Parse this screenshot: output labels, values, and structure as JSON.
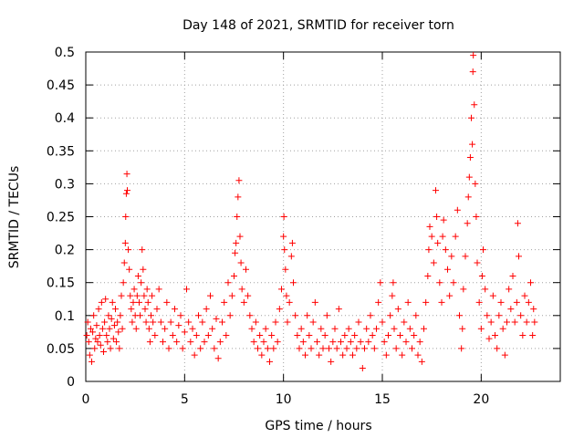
{
  "chart_data": {
    "type": "scatter",
    "title": "Day 148 of 2021, SRMTID for receiver torn",
    "xlabel": "GPS time / hours",
    "ylabel": "SRMTID / TECUs",
    "xlim": [
      0,
      24
    ],
    "ylim": [
      0,
      0.5
    ],
    "xticks": [
      0,
      5,
      10,
      15,
      20
    ],
    "xtick_labels": [
      "0",
      "5",
      "10",
      "15",
      "20"
    ],
    "yticks": [
      0,
      0.05,
      0.1,
      0.15,
      0.2,
      0.25,
      0.3,
      0.35,
      0.4,
      0.45,
      0.5
    ],
    "ytick_labels": [
      "0",
      "0.05",
      "0.1",
      "0.15",
      "0.2",
      "0.25",
      "0.3",
      "0.35",
      "0.4",
      "0.45",
      "0.5"
    ],
    "grid": true,
    "marker": "+",
    "color": "#ff0000",
    "series": [
      {
        "name": "SRMTID",
        "points": [
          [
            0.05,
            0.07
          ],
          [
            0.1,
            0.09
          ],
          [
            0.15,
            0.06
          ],
          [
            0.2,
            0.04
          ],
          [
            0.25,
            0.08
          ],
          [
            0.3,
            0.03
          ],
          [
            0.35,
            0.075
          ],
          [
            0.4,
            0.1
          ],
          [
            0.45,
            0.05
          ],
          [
            0.5,
            0.065
          ],
          [
            0.55,
            0.085
          ],
          [
            0.6,
            0.06
          ],
          [
            0.65,
            0.11
          ],
          [
            0.7,
            0.07
          ],
          [
            0.75,
            0.055
          ],
          [
            0.8,
            0.12
          ],
          [
            0.85,
            0.08
          ],
          [
            0.9,
            0.045
          ],
          [
            0.95,
            0.09
          ],
          [
            1.0,
            0.125
          ],
          [
            1.05,
            0.07
          ],
          [
            1.1,
            0.06
          ],
          [
            1.15,
            0.1
          ],
          [
            1.2,
            0.08
          ],
          [
            1.25,
            0.05
          ],
          [
            1.3,
            0.095
          ],
          [
            1.35,
            0.12
          ],
          [
            1.4,
            0.065
          ],
          [
            1.45,
            0.085
          ],
          [
            1.5,
            0.11
          ],
          [
            1.55,
            0.06
          ],
          [
            1.6,
            0.09
          ],
          [
            1.65,
            0.075
          ],
          [
            1.7,
            0.05
          ],
          [
            1.75,
            0.1
          ],
          [
            1.8,
            0.13
          ],
          [
            1.85,
            0.08
          ],
          [
            1.9,
            0.15
          ],
          [
            1.95,
            0.18
          ],
          [
            2.0,
            0.21
          ],
          [
            2.02,
            0.25
          ],
          [
            2.05,
            0.285
          ],
          [
            2.08,
            0.315
          ],
          [
            2.1,
            0.29
          ],
          [
            2.15,
            0.2
          ],
          [
            2.2,
            0.17
          ],
          [
            2.25,
            0.13
          ],
          [
            2.3,
            0.11
          ],
          [
            2.35,
            0.09
          ],
          [
            2.4,
            0.12
          ],
          [
            2.45,
            0.14
          ],
          [
            2.5,
            0.1
          ],
          [
            2.55,
            0.08
          ],
          [
            2.6,
            0.13
          ],
          [
            2.65,
            0.16
          ],
          [
            2.7,
            0.12
          ],
          [
            2.75,
            0.1
          ],
          [
            2.8,
            0.15
          ],
          [
            2.85,
            0.2
          ],
          [
            2.9,
            0.17
          ],
          [
            2.95,
            0.13
          ],
          [
            3.0,
            0.11
          ],
          [
            3.05,
            0.09
          ],
          [
            3.1,
            0.14
          ],
          [
            3.15,
            0.12
          ],
          [
            3.2,
            0.08
          ],
          [
            3.25,
            0.06
          ],
          [
            3.3,
            0.1
          ],
          [
            3.35,
            0.13
          ],
          [
            3.4,
            0.09
          ],
          [
            3.5,
            0.07
          ],
          [
            3.6,
            0.11
          ],
          [
            3.7,
            0.14
          ],
          [
            3.8,
            0.09
          ],
          [
            3.9,
            0.06
          ],
          [
            4.0,
            0.08
          ],
          [
            4.1,
            0.12
          ],
          [
            4.2,
            0.05
          ],
          [
            4.3,
            0.09
          ],
          [
            4.4,
            0.07
          ],
          [
            4.5,
            0.11
          ],
          [
            4.6,
            0.06
          ],
          [
            4.7,
            0.085
          ],
          [
            4.8,
            0.1
          ],
          [
            4.9,
            0.05
          ],
          [
            5.0,
            0.075
          ],
          [
            5.1,
            0.14
          ],
          [
            5.2,
            0.09
          ],
          [
            5.3,
            0.06
          ],
          [
            5.4,
            0.08
          ],
          [
            5.5,
            0.04
          ],
          [
            5.6,
            0.07
          ],
          [
            5.7,
            0.1
          ],
          [
            5.8,
            0.05
          ],
          [
            5.9,
            0.09
          ],
          [
            6.0,
            0.06
          ],
          [
            6.1,
            0.11
          ],
          [
            6.2,
            0.07
          ],
          [
            6.3,
            0.13
          ],
          [
            6.4,
            0.08
          ],
          [
            6.5,
            0.05
          ],
          [
            6.6,
            0.095
          ],
          [
            6.7,
            0.035
          ],
          [
            6.8,
            0.06
          ],
          [
            6.9,
            0.09
          ],
          [
            7.0,
            0.12
          ],
          [
            7.1,
            0.07
          ],
          [
            7.2,
            0.15
          ],
          [
            7.3,
            0.1
          ],
          [
            7.4,
            0.13
          ],
          [
            7.5,
            0.16
          ],
          [
            7.55,
            0.195
          ],
          [
            7.6,
            0.21
          ],
          [
            7.65,
            0.25
          ],
          [
            7.7,
            0.28
          ],
          [
            7.75,
            0.305
          ],
          [
            7.8,
            0.22
          ],
          [
            7.85,
            0.18
          ],
          [
            7.9,
            0.14
          ],
          [
            8.0,
            0.12
          ],
          [
            8.1,
            0.17
          ],
          [
            8.2,
            0.13
          ],
          [
            8.3,
            0.1
          ],
          [
            8.4,
            0.08
          ],
          [
            8.5,
            0.06
          ],
          [
            8.6,
            0.09
          ],
          [
            8.7,
            0.05
          ],
          [
            8.8,
            0.07
          ],
          [
            8.9,
            0.04
          ],
          [
            9.0,
            0.06
          ],
          [
            9.1,
            0.08
          ],
          [
            9.2,
            0.05
          ],
          [
            9.3,
            0.03
          ],
          [
            9.4,
            0.07
          ],
          [
            9.5,
            0.05
          ],
          [
            9.6,
            0.09
          ],
          [
            9.7,
            0.06
          ],
          [
            9.8,
            0.11
          ],
          [
            9.9,
            0.14
          ],
          [
            10.0,
            0.22
          ],
          [
            10.02,
            0.25
          ],
          [
            10.05,
            0.2
          ],
          [
            10.1,
            0.17
          ],
          [
            10.15,
            0.13
          ],
          [
            10.2,
            0.09
          ],
          [
            10.3,
            0.12
          ],
          [
            10.4,
            0.19
          ],
          [
            10.45,
            0.21
          ],
          [
            10.5,
            0.15
          ],
          [
            10.6,
            0.1
          ],
          [
            10.7,
            0.07
          ],
          [
            10.8,
            0.05
          ],
          [
            10.9,
            0.08
          ],
          [
            11.0,
            0.06
          ],
          [
            11.1,
            0.04
          ],
          [
            11.2,
            0.1
          ],
          [
            11.3,
            0.07
          ],
          [
            11.4,
            0.05
          ],
          [
            11.5,
            0.09
          ],
          [
            11.6,
            0.12
          ],
          [
            11.7,
            0.06
          ],
          [
            11.8,
            0.04
          ],
          [
            11.9,
            0.08
          ],
          [
            12.0,
            0.05
          ],
          [
            12.1,
            0.07
          ],
          [
            12.2,
            0.1
          ],
          [
            12.3,
            0.05
          ],
          [
            12.4,
            0.03
          ],
          [
            12.5,
            0.06
          ],
          [
            12.6,
            0.08
          ],
          [
            12.7,
            0.05
          ],
          [
            12.8,
            0.11
          ],
          [
            12.9,
            0.06
          ],
          [
            13.0,
            0.04
          ],
          [
            13.1,
            0.07
          ],
          [
            13.2,
            0.05
          ],
          [
            13.3,
            0.08
          ],
          [
            13.4,
            0.06
          ],
          [
            13.5,
            0.04
          ],
          [
            13.6,
            0.07
          ],
          [
            13.7,
            0.05
          ],
          [
            13.8,
            0.09
          ],
          [
            13.9,
            0.06
          ],
          [
            14.0,
            0.02
          ],
          [
            14.1,
            0.05
          ],
          [
            14.2,
            0.08
          ],
          [
            14.3,
            0.06
          ],
          [
            14.4,
            0.1
          ],
          [
            14.5,
            0.07
          ],
          [
            14.6,
            0.05
          ],
          [
            14.7,
            0.08
          ],
          [
            14.8,
            0.12
          ],
          [
            14.9,
            0.15
          ],
          [
            15.0,
            0.09
          ],
          [
            15.1,
            0.06
          ],
          [
            15.2,
            0.04
          ],
          [
            15.3,
            0.07
          ],
          [
            15.4,
            0.1
          ],
          [
            15.5,
            0.13
          ],
          [
            15.55,
            0.15
          ],
          [
            15.6,
            0.08
          ],
          [
            15.7,
            0.05
          ],
          [
            15.8,
            0.11
          ],
          [
            15.9,
            0.07
          ],
          [
            16.0,
            0.04
          ],
          [
            16.1,
            0.09
          ],
          [
            16.2,
            0.06
          ],
          [
            16.3,
            0.12
          ],
          [
            16.4,
            0.08
          ],
          [
            16.5,
            0.05
          ],
          [
            16.6,
            0.07
          ],
          [
            16.7,
            0.1
          ],
          [
            16.8,
            0.04
          ],
          [
            16.9,
            0.06
          ],
          [
            17.0,
            0.03
          ],
          [
            17.1,
            0.08
          ],
          [
            17.2,
            0.12
          ],
          [
            17.3,
            0.16
          ],
          [
            17.35,
            0.2
          ],
          [
            17.4,
            0.235
          ],
          [
            17.5,
            0.22
          ],
          [
            17.6,
            0.18
          ],
          [
            17.7,
            0.29
          ],
          [
            17.75,
            0.25
          ],
          [
            17.8,
            0.21
          ],
          [
            17.9,
            0.15
          ],
          [
            18.0,
            0.12
          ],
          [
            18.05,
            0.22
          ],
          [
            18.1,
            0.245
          ],
          [
            18.2,
            0.2
          ],
          [
            18.3,
            0.17
          ],
          [
            18.4,
            0.13
          ],
          [
            18.5,
            0.19
          ],
          [
            18.6,
            0.15
          ],
          [
            18.7,
            0.22
          ],
          [
            18.8,
            0.26
          ],
          [
            18.9,
            0.1
          ],
          [
            19.0,
            0.05
          ],
          [
            19.05,
            0.08
          ],
          [
            19.1,
            0.14
          ],
          [
            19.2,
            0.19
          ],
          [
            19.3,
            0.24
          ],
          [
            19.35,
            0.28
          ],
          [
            19.4,
            0.31
          ],
          [
            19.45,
            0.34
          ],
          [
            19.5,
            0.4
          ],
          [
            19.55,
            0.36
          ],
          [
            19.58,
            0.47
          ],
          [
            19.6,
            0.495
          ],
          [
            19.65,
            0.42
          ],
          [
            19.7,
            0.3
          ],
          [
            19.75,
            0.25
          ],
          [
            19.8,
            0.18
          ],
          [
            19.9,
            0.12
          ],
          [
            20.0,
            0.08
          ],
          [
            20.05,
            0.16
          ],
          [
            20.1,
            0.2
          ],
          [
            20.2,
            0.14
          ],
          [
            20.3,
            0.1
          ],
          [
            20.4,
            0.065
          ],
          [
            20.5,
            0.09
          ],
          [
            20.6,
            0.13
          ],
          [
            20.7,
            0.07
          ],
          [
            20.8,
            0.05
          ],
          [
            20.9,
            0.1
          ],
          [
            21.0,
            0.12
          ],
          [
            21.1,
            0.08
          ],
          [
            21.2,
            0.04
          ],
          [
            21.3,
            0.09
          ],
          [
            21.4,
            0.14
          ],
          [
            21.5,
            0.11
          ],
          [
            21.6,
            0.16
          ],
          [
            21.7,
            0.09
          ],
          [
            21.8,
            0.12
          ],
          [
            21.85,
            0.24
          ],
          [
            21.9,
            0.19
          ],
          [
            22.0,
            0.1
          ],
          [
            22.1,
            0.07
          ],
          [
            22.2,
            0.13
          ],
          [
            22.3,
            0.09
          ],
          [
            22.4,
            0.12
          ],
          [
            22.5,
            0.15
          ],
          [
            22.6,
            0.07
          ],
          [
            22.65,
            0.11
          ],
          [
            22.7,
            0.09
          ]
        ]
      }
    ]
  }
}
